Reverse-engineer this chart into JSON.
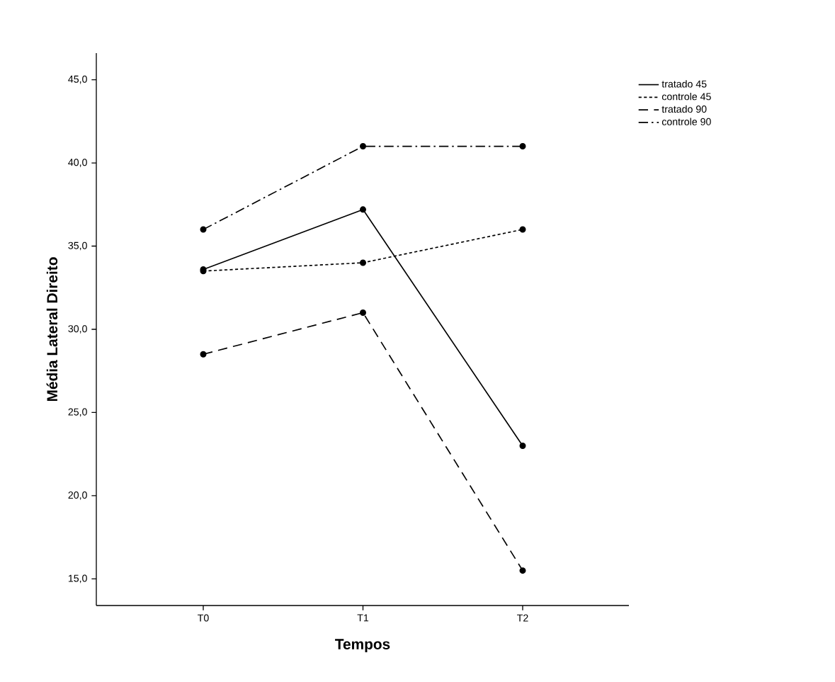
{
  "chart_data": {
    "type": "line",
    "xlabel": "Tempos",
    "ylabel": "Média Lateral Direito",
    "categories": [
      "T0",
      "T1",
      "T2"
    ],
    "series": [
      {
        "name": "tratado 45",
        "color": "#000000",
        "line_style": "solid",
        "values": [
          33.6,
          37.2,
          23.0
        ]
      },
      {
        "name": "controle 45",
        "color": "#000000",
        "line_style": "dotted",
        "values": [
          33.5,
          34.0,
          36.0
        ]
      },
      {
        "name": "tratado 90",
        "color": "#000000",
        "line_style": "dashed",
        "values": [
          28.5,
          31.0,
          15.5
        ]
      },
      {
        "name": "controle 90",
        "color": "#000000",
        "line_style": "dashdot",
        "values": [
          36.0,
          41.0,
          41.0
        ]
      }
    ],
    "ylim": [
      13.4,
      46.6
    ],
    "yticks": [
      {
        "value": 15,
        "label": "15,0"
      },
      {
        "value": 20,
        "label": "20,0"
      },
      {
        "value": 25,
        "label": "25,0"
      },
      {
        "value": 30,
        "label": "30,0"
      },
      {
        "value": 35,
        "label": "35,0"
      },
      {
        "value": 40,
        "label": "40,0"
      },
      {
        "value": 45,
        "label": "45,0"
      }
    ],
    "marker": "circle",
    "grid": false,
    "legend": "top right"
  }
}
